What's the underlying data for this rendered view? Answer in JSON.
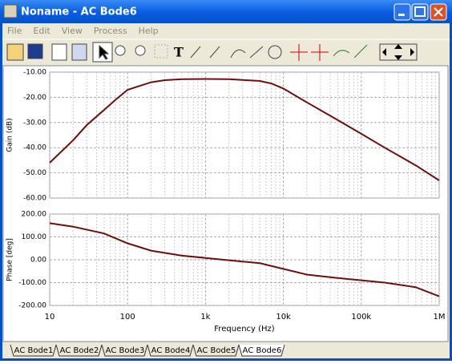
{
  "window": {
    "title": "Noname - AC Bode6"
  },
  "menu": [
    "File",
    "Edit",
    "View",
    "Process",
    "Help"
  ],
  "tabs": [
    "AC Bode1",
    "AC Bode2",
    "AC Bode3",
    "AC Bode4",
    "AC Bode5",
    "AC Bode6"
  ],
  "chart_data": [
    {
      "type": "line",
      "ylabel": "Gain (dB)",
      "xscale": "log",
      "grid": true,
      "color": "#6b0f0f",
      "x": [
        10,
        20,
        30,
        50,
        70,
        100,
        200,
        300,
        500,
        1000,
        2000,
        5000,
        7000,
        10000,
        20000,
        50000,
        100000,
        200000,
        500000,
        1000000
      ],
      "values": [
        -46,
        -37,
        -31,
        -25,
        -21,
        -17,
        -14,
        -13.2,
        -12.8,
        -12.7,
        -12.8,
        -13.5,
        -14.5,
        -16.5,
        -22,
        -29,
        -34.5,
        -40,
        -47,
        -53
      ],
      "xlim": [
        10,
        1000000
      ],
      "ylim": [
        -60,
        -10
      ],
      "yticks": [
        {
          "value": -60,
          "label": "-60.00"
        },
        {
          "value": -50,
          "label": "-50.00"
        },
        {
          "value": -40,
          "label": "-40.00"
        },
        {
          "value": -30,
          "label": "-30.00"
        },
        {
          "value": -20,
          "label": "-20.00"
        },
        {
          "value": -10,
          "label": "-10.00"
        }
      ]
    },
    {
      "type": "line",
      "ylabel": "Phase [deg]",
      "xlabel": "Frequency (Hz)",
      "xscale": "log",
      "grid": true,
      "color": "#6b0f0f",
      "x": [
        10,
        20,
        50,
        100,
        200,
        500,
        1000,
        2000,
        5000,
        10000,
        20000,
        50000,
        100000,
        200000,
        500000,
        1000000
      ],
      "values": [
        160,
        145,
        115,
        72,
        40,
        18,
        8,
        -2,
        -15,
        -40,
        -65,
        -80,
        -90,
        -100,
        -120,
        -160
      ],
      "xlim": [
        10,
        1000000
      ],
      "ylim": [
        -200,
        200
      ],
      "xticks": [
        10,
        100,
        {
          "value": 1000,
          "label": "1k"
        },
        {
          "value": 10000,
          "label": "10k"
        },
        {
          "value": 100000,
          "label": "100k"
        },
        {
          "value": 1000000,
          "label": "1M"
        }
      ],
      "yticks": [
        {
          "value": -200,
          "label": "-200.00"
        },
        {
          "value": -100,
          "label": "-100.00"
        },
        {
          "value": 0,
          "label": "0.00"
        },
        {
          "value": 100,
          "label": "100.00"
        },
        {
          "value": 200,
          "label": "200.00"
        }
      ]
    }
  ]
}
